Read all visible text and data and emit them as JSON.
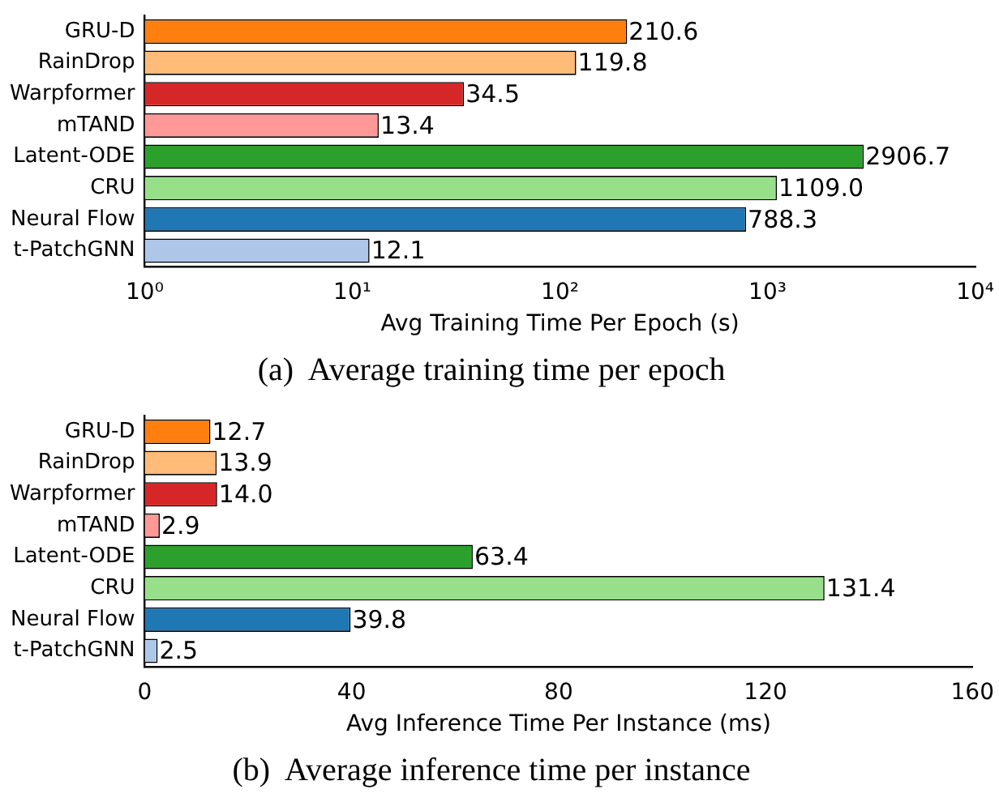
{
  "chart_data": [
    {
      "type": "bar",
      "orientation": "horizontal",
      "title": "(a)  Average training time per epoch",
      "xlabel": "Avg Training Time Per Epoch (s)",
      "categories": [
        "GRU-D",
        "RainDrop",
        "Warpformer",
        "mTAND",
        "Latent-ODE",
        "CRU",
        "Neural Flow",
        "t-PatchGNN"
      ],
      "values": [
        210.6,
        119.8,
        34.5,
        13.4,
        2906.7,
        1109.0,
        788.3,
        12.1
      ],
      "value_labels": [
        "210.6",
        "119.8",
        "34.5",
        "13.4",
        "2906.7",
        "1109.0",
        "788.3",
        "12.1"
      ],
      "colors": [
        "#ff7f0e",
        "#ffbb78",
        "#d62728",
        "#ff9896",
        "#2ca02c",
        "#98df8a",
        "#1f77b4",
        "#aec7e8"
      ],
      "log": "x",
      "xlim": [
        1,
        10000
      ],
      "xticks": [
        {
          "value": 1,
          "label": "10⁰"
        },
        {
          "value": 10,
          "label": "10¹"
        },
        {
          "value": 100,
          "label": "10²"
        },
        {
          "value": 1000,
          "label": "10³"
        },
        {
          "value": 10000,
          "label": "10⁴"
        }
      ],
      "grid": false,
      "legend": false
    },
    {
      "type": "bar",
      "orientation": "horizontal",
      "title": "(b)  Average inference time per instance",
      "xlabel": "Avg Inference Time Per Instance (ms)",
      "categories": [
        "GRU-D",
        "RainDrop",
        "Warpformer",
        "mTAND",
        "Latent-ODE",
        "CRU",
        "Neural Flow",
        "t-PatchGNN"
      ],
      "values": [
        12.7,
        13.9,
        14.0,
        2.9,
        63.4,
        131.4,
        39.8,
        2.5
      ],
      "value_labels": [
        "12.7",
        "13.9",
        "14.0",
        "2.9",
        "63.4",
        "131.4",
        "39.8",
        "2.5"
      ],
      "colors": [
        "#ff7f0e",
        "#ffbb78",
        "#d62728",
        "#ff9896",
        "#2ca02c",
        "#98df8a",
        "#1f77b4",
        "#aec7e8"
      ],
      "xlim": [
        0,
        160
      ],
      "xticks": [
        0,
        40,
        80,
        120,
        160
      ],
      "grid": false,
      "legend": false
    }
  ]
}
